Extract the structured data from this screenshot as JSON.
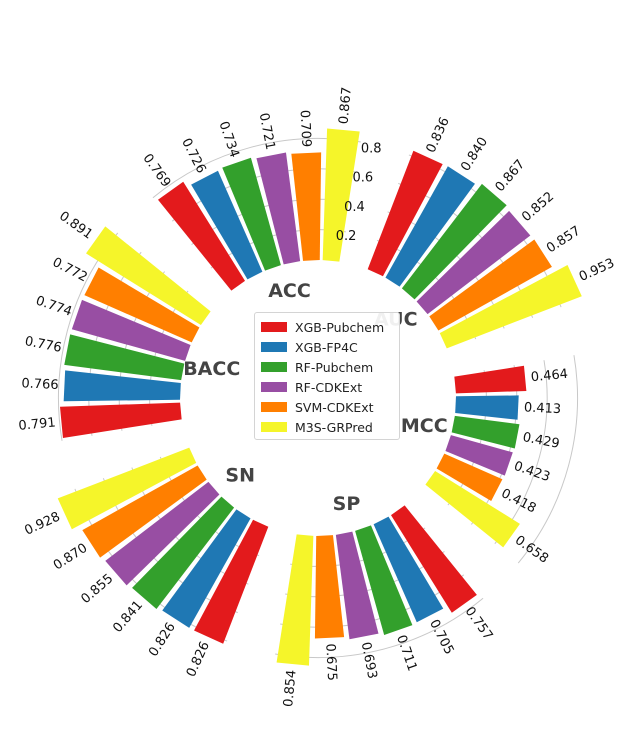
{
  "chart_data": {
    "type": "bar",
    "layout": "radial",
    "title": "",
    "xlabel": "",
    "ylabel": "",
    "ylim": [
      0,
      1
    ],
    "grid": true,
    "legend_position": "center",
    "radial_ticks": [
      "0.2",
      "0.4",
      "0.6",
      "0.8"
    ],
    "categories": [
      "AUC",
      "MCC",
      "SP",
      "SN",
      "BACC",
      "ACC"
    ],
    "series": [
      {
        "name": "XGB-Pubchem",
        "color": "#e31a1c",
        "values": [
          0.836,
          0.464,
          0.757,
          0.826,
          0.791,
          0.769
        ]
      },
      {
        "name": "XGB-FP4C",
        "color": "#1f78b4",
        "values": [
          0.84,
          0.413,
          0.705,
          0.826,
          0.766,
          0.726
        ]
      },
      {
        "name": "RF-Pubchem",
        "color": "#33a02c",
        "values": [
          0.867,
          0.429,
          0.711,
          0.841,
          0.776,
          0.734
        ]
      },
      {
        "name": "RF-CDKExt",
        "color": "#984ea3",
        "values": [
          0.852,
          0.423,
          0.693,
          0.855,
          0.774,
          0.721
        ]
      },
      {
        "name": "SVM-CDKExt",
        "color": "#ff7f00",
        "values": [
          0.857,
          0.418,
          0.675,
          0.87,
          0.772,
          0.709
        ]
      },
      {
        "name": "M3S-GRPred",
        "color": "#f5f52a",
        "values": [
          0.953,
          0.658,
          0.854,
          0.928,
          0.891,
          0.867
        ]
      }
    ],
    "value_labels": [
      [
        "0.836",
        "0.464",
        "0.757",
        "0.826",
        "0.791",
        "0.769"
      ],
      [
        "0.840",
        "0.413",
        "0.705",
        "0.826",
        "0.766",
        "0.726"
      ],
      [
        "0.867",
        "0.429",
        "0.711",
        "0.841",
        "0.776",
        "0.734"
      ],
      [
        "0.852",
        "0.423",
        "0.693",
        "0.855",
        "0.774",
        "0.721"
      ],
      [
        "0.857",
        "0.418",
        "0.675",
        "0.870",
        "0.772",
        "0.709"
      ],
      [
        "0.953",
        "0.658",
        "0.854",
        "0.928",
        "0.891",
        "0.867"
      ]
    ]
  }
}
